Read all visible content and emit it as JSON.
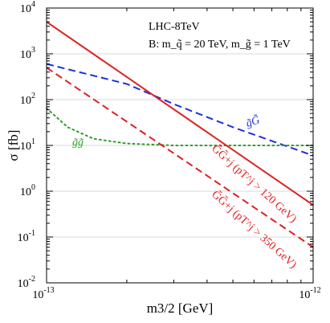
{
  "chart_data": {
    "type": "line",
    "title": "",
    "xlabel": "m3/2 [GeV]",
    "ylabel": "σ [fb]",
    "x_scale": "log",
    "y_scale": "log",
    "xlim": [
      1e-13,
      1e-12
    ],
    "ylim": [
      0.01,
      10000
    ],
    "x_ticks": [
      {
        "value": 1e-13,
        "base": "10",
        "exp": "-13"
      },
      {
        "value": 1e-12,
        "base": "10",
        "exp": "-12"
      }
    ],
    "y_ticks": [
      {
        "value": 0.01,
        "base": "10",
        "exp": "-2"
      },
      {
        "value": 0.1,
        "base": "10",
        "exp": "-1"
      },
      {
        "value": 1,
        "base": "10",
        "exp": "0"
      },
      {
        "value": 10,
        "base": "10",
        "exp": "1"
      },
      {
        "value": 100,
        "base": "10",
        "exp": "2"
      },
      {
        "value": 1000,
        "base": "10",
        "exp": "3"
      },
      {
        "value": 10000,
        "base": "10",
        "exp": "4"
      }
    ],
    "grid": "horizontal",
    "annotations": {
      "line1": "LHC-8TeV",
      "line2_prefix": "B: ",
      "line2_text": "m_q̃ = 20 TeV, m_g̃ = 1 TeV"
    },
    "series": [
      {
        "name": "g̃G̃",
        "color": "#1f2fe0",
        "dash": "dashed",
        "x": [
          1e-13,
          2e-13,
          3e-13,
          5e-13,
          1e-12
        ],
        "y": [
          600,
          220,
          80,
          25,
          6
        ]
      },
      {
        "name": "g̃g̃",
        "color": "#2aa02a",
        "dash": "dotted",
        "x": [
          1e-13,
          1.2e-13,
          1.5e-13,
          2e-13,
          3e-13,
          5e-13,
          1e-12
        ],
        "y": [
          65,
          25,
          14,
          11,
          10,
          10,
          10
        ]
      },
      {
        "name": "G̃G̃+j (pT^j > 120 GeV)",
        "color": "#e01f1f",
        "dash": "solid",
        "x": [
          1e-13,
          1e-12
        ],
        "y": [
          5000,
          0.5
        ]
      },
      {
        "name": "G̃G̃+j (pT^j > 350 GeV)",
        "color": "#e01f1f",
        "dash": "dashed",
        "x": [
          1e-13,
          1e-12
        ],
        "y": [
          500,
          0.06
        ]
      }
    ]
  }
}
